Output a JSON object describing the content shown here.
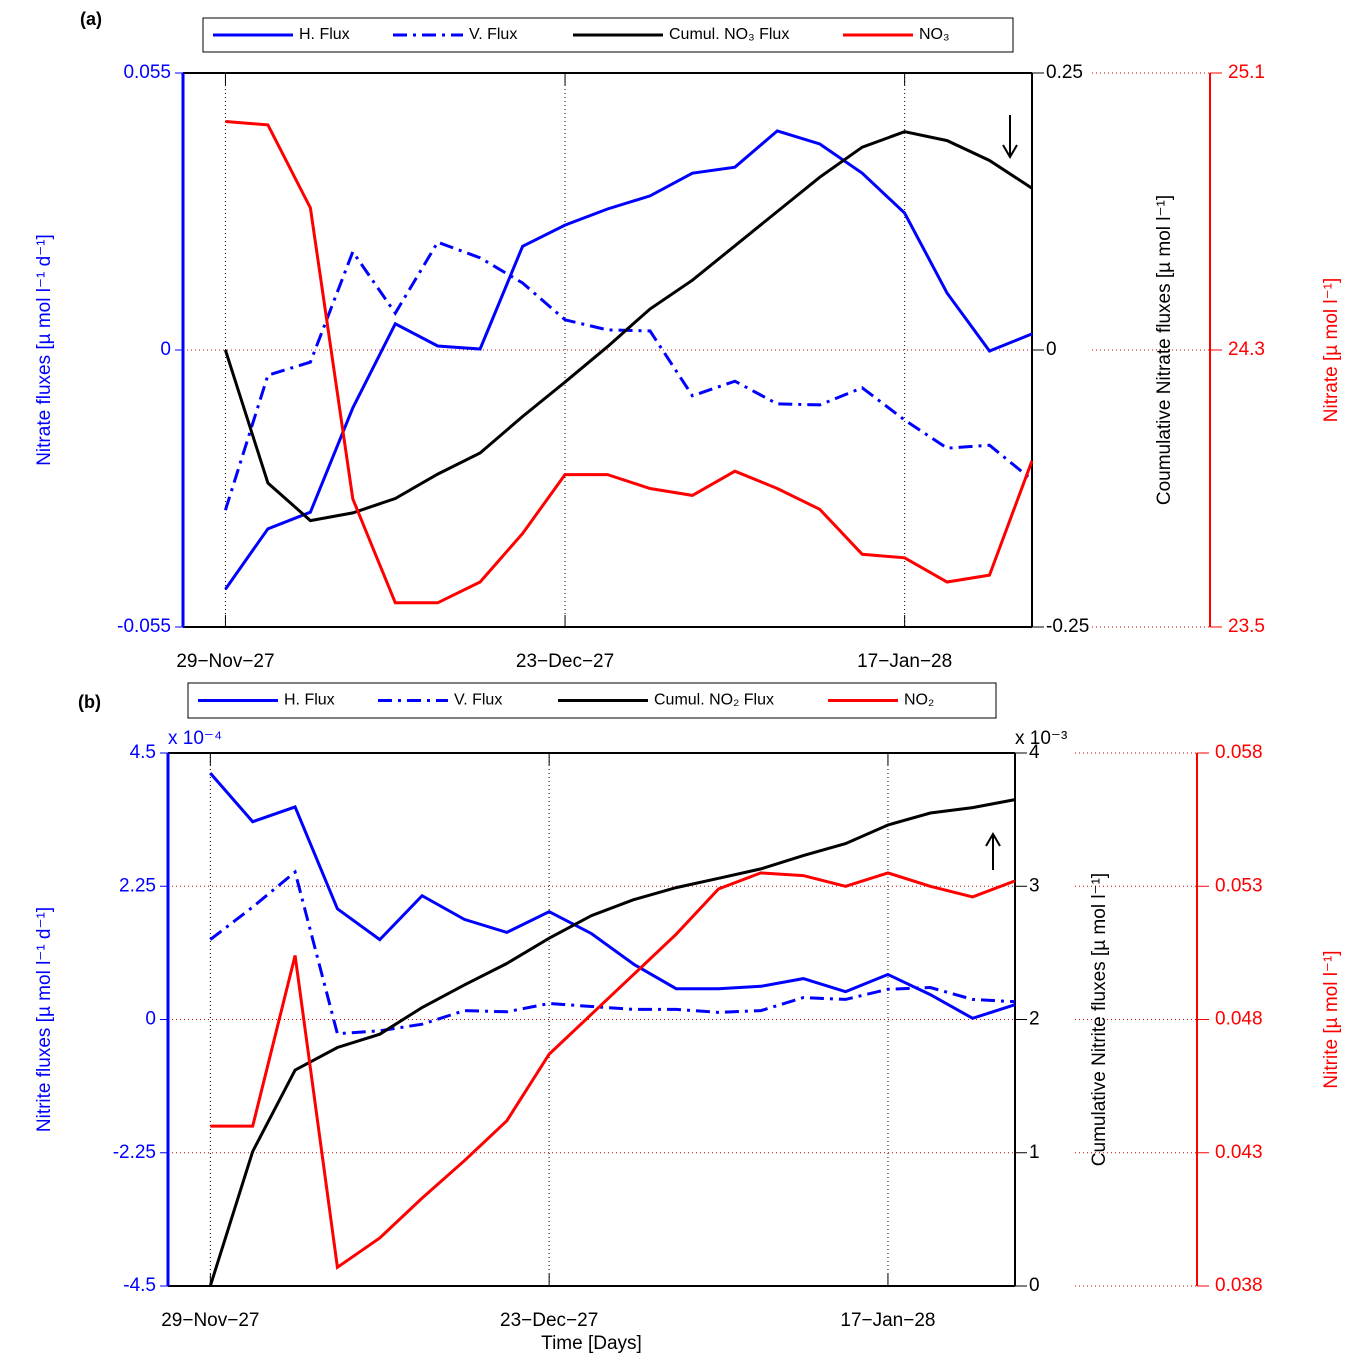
{
  "chart_data": [
    {
      "type": "line",
      "panel_label": "(a)",
      "y_label": "Nitrate fluxes [µ mol l⁻¹ d⁻¹]",
      "y2_label": "Coumulative Nitrate fluxes [µ mol l⁻¹]",
      "y3_label": "Nitrate [µ mol l⁻¹]",
      "x": [
        0,
        3,
        6,
        9,
        12,
        15,
        18,
        21,
        24,
        27,
        30,
        33,
        36,
        39,
        42,
        45,
        48,
        51,
        54,
        57
      ],
      "xlim": [
        -3,
        57
      ],
      "xticks": [
        {
          "value": 0,
          "label": "29−Nov−27"
        },
        {
          "value": 24,
          "label": "23−Dec−27"
        },
        {
          "value": 48,
          "label": "17−Jan−28"
        }
      ],
      "ylim": [
        -0.055,
        0.055
      ],
      "yticks": [
        -0.055,
        0,
        0.055
      ],
      "y2lim": [
        -0.25,
        0.25
      ],
      "y2ticks": [
        -0.25,
        0,
        0.25
      ],
      "y3lim": [
        23.5,
        25.1
      ],
      "y3ticks": [
        23.5,
        24.3,
        25.1
      ],
      "series": [
        {
          "name": "H. Flux",
          "color": "#0000ff",
          "style": "solid",
          "values": [
            -0.0475,
            -0.0355,
            -0.0322,
            -0.0115,
            0.0052,
            0.0008,
            0.0002,
            0.0206,
            0.0248,
            0.028,
            0.0306,
            0.0351,
            0.0363,
            0.0435,
            0.0409,
            0.0351,
            0.0272,
            0.0113,
            -0.0002,
            0.0032
          ]
        },
        {
          "name": "V. Flux",
          "color": "#0000ff",
          "style": "dash-dot",
          "values": [
            -0.0318,
            -0.005,
            -0.0024,
            0.0195,
            0.0073,
            0.0214,
            0.0183,
            0.0133,
            0.006,
            0.004,
            0.0038,
            -0.0091,
            -0.0062,
            -0.0107,
            -0.0109,
            -0.0075,
            -0.0139,
            -0.0195,
            -0.0189,
            -0.0258
          ]
        },
        {
          "name": "Cumul. NO₃ Flux",
          "color": "#000000",
          "style": "solid",
          "axis": "y2",
          "values": [
            0,
            -0.12,
            -0.154,
            -0.147,
            -0.134,
            -0.112,
            -0.093,
            -0.06,
            -0.029,
            0.003,
            0.037,
            0.063,
            0.094,
            0.125,
            0.156,
            0.183,
            0.197,
            0.189,
            0.171,
            0.146
          ]
        },
        {
          "name": "NO₃",
          "color": "#ff0000",
          "style": "solid",
          "axis": "y3",
          "values": [
            24.96,
            24.95,
            24.71,
            23.87,
            23.57,
            23.57,
            23.63,
            23.77,
            23.94,
            23.94,
            23.9,
            23.88,
            23.95,
            23.9,
            23.84,
            23.71,
            23.7,
            23.63,
            23.65,
            23.98
          ]
        }
      ]
    },
    {
      "type": "line",
      "panel_label": "(b)",
      "x_label": "Time [Days]",
      "y_label": "Nitrite fluxes [µ mol l⁻¹ d⁻¹]",
      "y2_label": "Cumulative Nitrite fluxes [µ mol l⁻¹]",
      "y3_label": "Nitrite [µ mol l⁻¹]",
      "y_multiplier": "x 10⁻⁴",
      "y2_multiplier": "x 10⁻³",
      "x": [
        0,
        3,
        6,
        9,
        12,
        15,
        18,
        21,
        24,
        27,
        30,
        33,
        36,
        39,
        42,
        45,
        48,
        51,
        54,
        57
      ],
      "xlim": [
        -3,
        57
      ],
      "xticks": [
        {
          "value": 0,
          "label": "29−Nov−27"
        },
        {
          "value": 24,
          "label": "23−Dec−27"
        },
        {
          "value": 48,
          "label": "17−Jan−28"
        }
      ],
      "ylim": [
        -4.5,
        4.5
      ],
      "yticks": [
        -4.5,
        -2.25,
        0,
        2.25,
        4.5
      ],
      "y2lim": [
        0,
        4
      ],
      "y2ticks": [
        0,
        1,
        2,
        3,
        4
      ],
      "y3lim": [
        0.038,
        0.058
      ],
      "y3ticks": [
        0.038,
        0.043,
        0.048,
        0.053,
        0.058
      ],
      "series": [
        {
          "name": "H. Flux",
          "color": "#0000ff",
          "style": "solid",
          "values": [
            4.16,
            3.34,
            3.59,
            1.87,
            1.35,
            2.09,
            1.69,
            1.47,
            1.82,
            1.45,
            0.93,
            0.52,
            0.52,
            0.56,
            0.69,
            0.47,
            0.76,
            0.42,
            0.02,
            0.25
          ]
        },
        {
          "name": "V. Flux",
          "color": "#0000ff",
          "style": "dash-dot",
          "values": [
            1.35,
            1.9,
            2.49,
            -0.24,
            -0.19,
            -0.08,
            0.15,
            0.13,
            0.27,
            0.22,
            0.17,
            0.17,
            0.12,
            0.15,
            0.37,
            0.34,
            0.51,
            0.54,
            0.34,
            0.3
          ]
        },
        {
          "name": "Cumul. NO₂ Flux",
          "color": "#000000",
          "style": "solid",
          "axis": "y2",
          "values": [
            0,
            1.01,
            1.62,
            1.79,
            1.89,
            2.09,
            2.26,
            2.42,
            2.61,
            2.78,
            2.9,
            2.99,
            3.06,
            3.13,
            3.23,
            3.32,
            3.46,
            3.55,
            3.59,
            3.65
          ]
        },
        {
          "name": "NO₂",
          "color": "#ff0000",
          "style": "solid",
          "axis": "y3",
          "values": [
            0.044,
            0.044,
            0.0504,
            0.0387,
            0.0398,
            0.0413,
            0.0427,
            0.0442,
            0.0467,
            0.0482,
            0.0497,
            0.0512,
            0.0529,
            0.0535,
            0.0534,
            0.053,
            0.0535,
            0.053,
            0.0526,
            0.0532
          ]
        }
      ]
    }
  ]
}
